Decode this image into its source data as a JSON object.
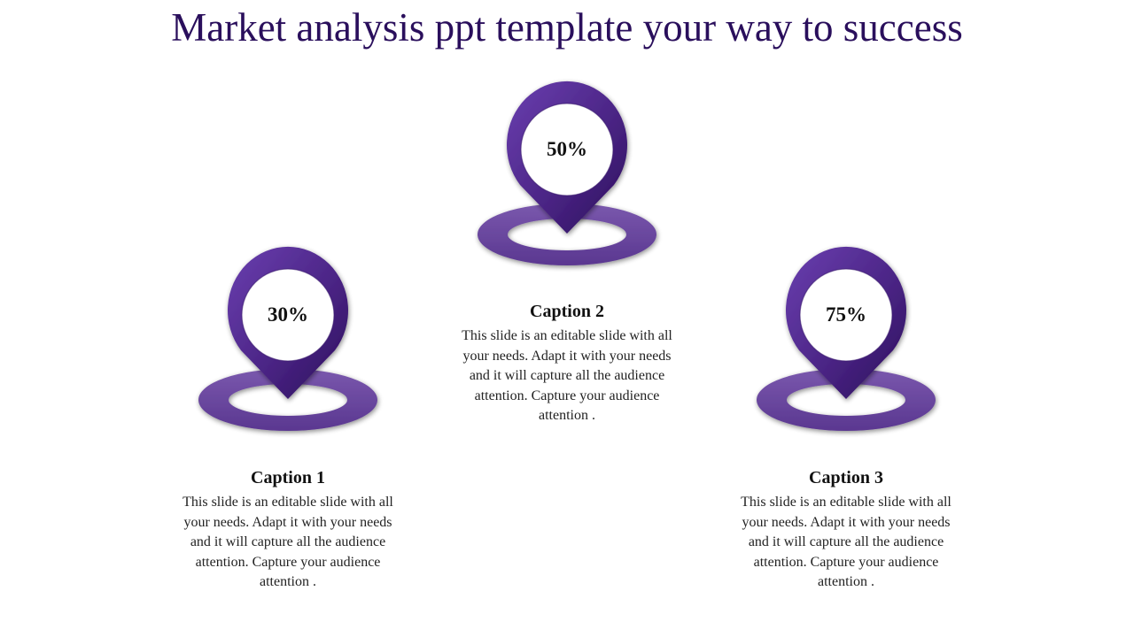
{
  "title": "Market analysis ppt template your way to success",
  "colors": {
    "title": "#2a0f5c",
    "pin": "#4b2585",
    "pin_dark": "#2e1160",
    "ring": "#6a479e"
  },
  "icons": [
    "map-pin-icon",
    "location-ring-icon"
  ],
  "items": [
    {
      "percent": "30%",
      "caption": "Caption 1",
      "text": "This slide is an editable slide with all your needs. Adapt it with your needs and it will capture all the audience attention. Capture your audience attention ."
    },
    {
      "percent": "50%",
      "caption": "Caption 2",
      "text": "This slide is an editable slide with all your needs. Adapt it with your needs and it will capture all the audience attention. Capture your audience attention ."
    },
    {
      "percent": "75%",
      "caption": "Caption 3",
      "text": "This slide is an editable slide with all your needs. Adapt it with your needs and it will capture all the audience attention. Capture your audience attention ."
    }
  ]
}
